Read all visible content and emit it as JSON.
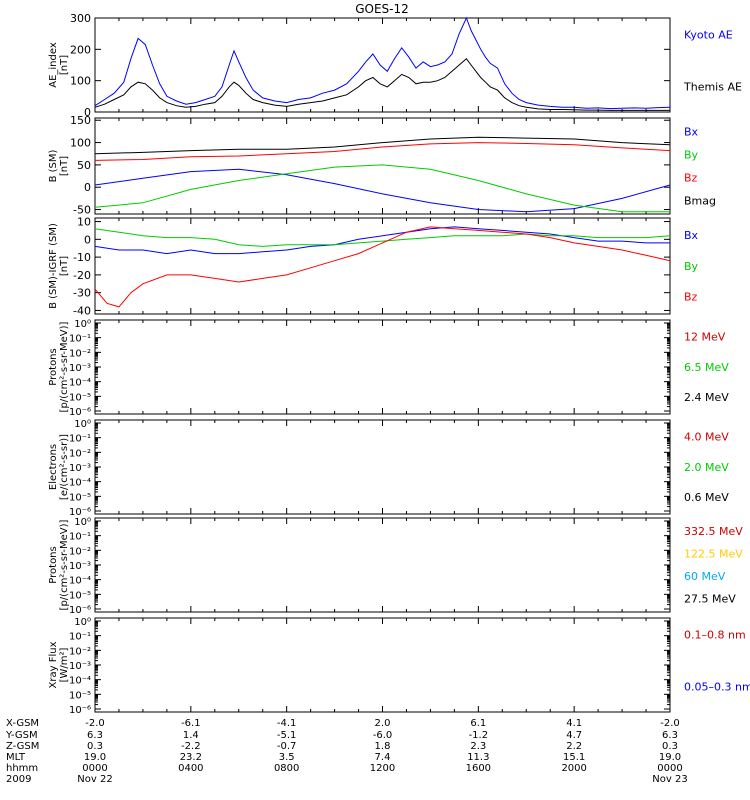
{
  "title": "GOES-12",
  "chart_data": [
    {
      "type": "line",
      "ylabel": [
        "AE_index",
        "[nT]"
      ],
      "yticks": [
        "0",
        "100",
        "200",
        "300"
      ],
      "ylim": [
        0,
        300
      ],
      "log": false,
      "xlim": [
        0,
        24
      ],
      "series": [
        {
          "name": "Kyoto AE",
          "color": "#0000ff",
          "x": [
            0,
            0.4,
            0.8,
            1.2,
            1.5,
            1.8,
            2.1,
            2.4,
            2.7,
            3,
            3.4,
            3.8,
            4.2,
            4.6,
            5,
            5.3,
            5.6,
            5.8,
            6,
            6.3,
            6.6,
            7,
            7.5,
            8,
            8.5,
            9,
            9.5,
            10,
            10.5,
            11,
            11.3,
            11.6,
            11.9,
            12.2,
            12.5,
            12.8,
            13.1,
            13.4,
            13.7,
            14,
            14.3,
            14.6,
            14.9,
            15.2,
            15.5,
            15.7,
            15.9,
            16.1,
            16.3,
            16.5,
            16.8,
            17.1,
            17.4,
            17.7,
            18,
            18.5,
            19,
            19.5,
            20,
            20.5,
            21,
            21.5,
            22,
            22.5,
            23,
            23.5,
            24
          ],
          "y": [
            20,
            40,
            60,
            95,
            170,
            235,
            215,
            150,
            90,
            50,
            35,
            25,
            30,
            40,
            50,
            80,
            150,
            195,
            160,
            110,
            70,
            45,
            35,
            30,
            40,
            45,
            60,
            70,
            90,
            130,
            160,
            185,
            150,
            130,
            170,
            205,
            175,
            140,
            160,
            145,
            150,
            160,
            185,
            250,
            300,
            260,
            230,
            200,
            175,
            155,
            140,
            90,
            60,
            40,
            30,
            22,
            18,
            15,
            15,
            12,
            13,
            11,
            12,
            13,
            12,
            14,
            15
          ]
        },
        {
          "name": "Themis AE",
          "color": "#000000",
          "x": [
            0,
            0.4,
            0.8,
            1.2,
            1.5,
            1.8,
            2.1,
            2.4,
            2.7,
            3,
            3.4,
            3.8,
            4.2,
            4.6,
            5,
            5.3,
            5.6,
            5.8,
            6,
            6.3,
            6.6,
            7,
            7.5,
            8,
            8.5,
            9,
            9.5,
            10,
            10.5,
            11,
            11.3,
            11.6,
            11.9,
            12.2,
            12.5,
            12.8,
            13.1,
            13.4,
            13.7,
            14,
            14.3,
            14.6,
            14.9,
            15.2,
            15.5,
            15.7,
            15.9,
            16.1,
            16.3,
            16.5,
            16.8,
            17.1,
            17.4,
            17.7,
            18,
            18.5,
            19,
            19.5,
            20,
            20.5,
            21,
            21.5,
            22,
            22.5,
            23,
            23.5,
            24
          ],
          "y": [
            15,
            25,
            40,
            55,
            80,
            95,
            90,
            70,
            45,
            30,
            20,
            15,
            18,
            25,
            30,
            50,
            80,
            95,
            85,
            60,
            40,
            30,
            22,
            18,
            25,
            30,
            35,
            45,
            55,
            80,
            100,
            110,
            90,
            80,
            100,
            120,
            110,
            90,
            95,
            95,
            100,
            110,
            130,
            150,
            170,
            150,
            130,
            110,
            95,
            80,
            70,
            45,
            30,
            20,
            15,
            10,
            8,
            8,
            7,
            6,
            6,
            5,
            5,
            5,
            5,
            5,
            5
          ]
        }
      ]
    },
    {
      "type": "line",
      "ylabel": [
        "B (SM)",
        "[nT]"
      ],
      "yticks": [
        "-50",
        "0",
        "50",
        "100",
        "150"
      ],
      "ylim": [
        -60,
        155
      ],
      "log": false,
      "xlim": [
        0,
        24
      ],
      "series": [
        {
          "name": "Bx",
          "color": "#0000ff",
          "x": [
            0,
            2,
            4,
            6,
            8,
            10,
            12,
            14,
            16,
            18,
            20,
            22,
            24
          ],
          "y": [
            5,
            20,
            35,
            40,
            28,
            8,
            -15,
            -35,
            -50,
            -55,
            -48,
            -25,
            5
          ]
        },
        {
          "name": "By",
          "color": "#00cc00",
          "x": [
            0,
            2,
            4,
            6,
            8,
            10,
            12,
            14,
            16,
            18,
            20,
            22,
            24
          ],
          "y": [
            -45,
            -35,
            -5,
            15,
            30,
            45,
            50,
            40,
            15,
            -15,
            -40,
            -55,
            -55
          ]
        },
        {
          "name": "Bz",
          "color": "#ff0000",
          "x": [
            0,
            2,
            4,
            6,
            8,
            10,
            12,
            14,
            16,
            18,
            20,
            22,
            24
          ],
          "y": [
            60,
            62,
            68,
            70,
            75,
            80,
            90,
            97,
            100,
            98,
            95,
            88,
            82
          ]
        },
        {
          "name": "Bmag",
          "color": "#000000",
          "x": [
            0,
            2,
            4,
            6,
            8,
            10,
            12,
            14,
            16,
            18,
            20,
            22,
            24
          ],
          "y": [
            75,
            78,
            82,
            85,
            85,
            90,
            100,
            108,
            112,
            110,
            108,
            100,
            95
          ]
        }
      ]
    },
    {
      "type": "line",
      "ylabel": [
        "B (SM)-IGRF (SM)",
        "[nT]"
      ],
      "yticks": [
        "-40",
        "-30",
        "-20",
        "-10",
        "0",
        "10"
      ],
      "ylim": [
        -42,
        12
      ],
      "log": false,
      "xlim": [
        0,
        24
      ],
      "series": [
        {
          "name": "Bx",
          "color": "#0000ff",
          "x": [
            0,
            1,
            2,
            3,
            4,
            5,
            6,
            7,
            8,
            9,
            10,
            11,
            12,
            13,
            14,
            15,
            16,
            17,
            18,
            19,
            20,
            21,
            22,
            23,
            24
          ],
          "y": [
            -4,
            -6,
            -6,
            -8,
            -6,
            -8,
            -8,
            -7,
            -6,
            -4,
            -3,
            0,
            2,
            4,
            6,
            7,
            6,
            5,
            4,
            3,
            1,
            -1,
            -1,
            -2,
            -2
          ]
        },
        {
          "name": "By",
          "color": "#00cc00",
          "x": [
            0,
            1,
            2,
            3,
            4,
            5,
            6,
            7,
            8,
            9,
            10,
            11,
            12,
            13,
            14,
            15,
            16,
            17,
            18,
            19,
            20,
            21,
            22,
            23,
            24
          ],
          "y": [
            6,
            4,
            2,
            1,
            1,
            0,
            -3,
            -4,
            -3,
            -3,
            -3,
            -2,
            -1,
            0,
            1,
            2,
            2,
            2,
            3,
            2,
            2,
            1,
            1,
            1,
            2
          ]
        },
        {
          "name": "Bz",
          "color": "#ff0000",
          "x": [
            0,
            0.5,
            1,
            1.5,
            2,
            3,
            4,
            5,
            6,
            7,
            8,
            9,
            10,
            11,
            12,
            13,
            14,
            15,
            16,
            17,
            18,
            19,
            20,
            21,
            22,
            23,
            24
          ],
          "y": [
            -28,
            -36,
            -38,
            -30,
            -25,
            -20,
            -20,
            -22,
            -24,
            -22,
            -20,
            -16,
            -12,
            -8,
            -2,
            4,
            7,
            6,
            5,
            4,
            3,
            1,
            -2,
            -4,
            -6,
            -9,
            -12
          ]
        }
      ]
    },
    {
      "type": "line",
      "ylabel": [
        "Protons",
        "[p/(cm²-s-sr-MeV)]"
      ],
      "ytick_labels": [
        "10⁰",
        "10⁻¹",
        "10⁻²",
        "10⁻³",
        "10⁻⁴",
        "10⁻⁵",
        "10⁻⁶"
      ],
      "log": true,
      "xlim": [
        0,
        24
      ],
      "series": [
        {
          "name": "12 MeV",
          "color": "#cc0000"
        },
        {
          "name": "6.5 MeV",
          "color": "#00cc00"
        },
        {
          "name": "2.4 MeV",
          "color": "#000000"
        }
      ]
    },
    {
      "type": "line",
      "ylabel": [
        "Electrons",
        "[e/(cm²-s-sr)]"
      ],
      "ytick_labels": [
        "10⁰",
        "10⁻¹",
        "10⁻²",
        "10⁻³",
        "10⁻⁴",
        "10⁻⁵",
        "10⁻⁶"
      ],
      "log": true,
      "xlim": [
        0,
        24
      ],
      "series": [
        {
          "name": "4.0 MeV",
          "color": "#cc0000"
        },
        {
          "name": "2.0 MeV",
          "color": "#00cc00"
        },
        {
          "name": "0.6 MeV",
          "color": "#000000"
        }
      ]
    },
    {
      "type": "line",
      "ylabel": [
        "Protons",
        "[p/(cm²-s-sr-MeV)]"
      ],
      "ytick_labels": [
        "10⁰",
        "10⁻¹",
        "10⁻²",
        "10⁻³",
        "10⁻⁴",
        "10⁻⁵",
        "10⁻⁶"
      ],
      "log": true,
      "xlim": [
        0,
        24
      ],
      "series": [
        {
          "name": "332.5 MeV",
          "color": "#cc0000"
        },
        {
          "name": "122.5 MeV",
          "color": "#ffcc00"
        },
        {
          "name": "60 MeV",
          "color": "#00aaee"
        },
        {
          "name": "27.5 MeV",
          "color": "#000000"
        }
      ]
    },
    {
      "type": "line",
      "ylabel": [
        "Xray  Flux",
        "[W/m²]"
      ],
      "ytick_labels": [
        "10⁰",
        "10⁻¹",
        "10⁻²",
        "10⁻³",
        "10⁻⁴",
        "10⁻⁵",
        "10⁻⁶"
      ],
      "log": true,
      "xlim": [
        0,
        24
      ],
      "series": [
        {
          "name": "0.1–0.8 nm",
          "color": "#cc0000"
        },
        {
          "name": "0.05–0.3 nm",
          "color": "#0000ff"
        }
      ]
    }
  ],
  "x_axis": {
    "row_labels": [
      "X-GSM",
      "Y-GSM",
      "Z-GSM",
      "MLT",
      "hhmm",
      "2009"
    ],
    "columns": [
      [
        "-2.0",
        "6.3",
        "0.3",
        "19.0",
        "0000",
        "Nov 22"
      ],
      [
        "-6.1",
        "1.4",
        "-2.2",
        "23.2",
        "0400",
        ""
      ],
      [
        "-4.1",
        "-5.1",
        "-0.7",
        "3.5",
        "0800",
        ""
      ],
      [
        "2.0",
        "-6.0",
        "1.8",
        "7.4",
        "1200",
        ""
      ],
      [
        "6.1",
        "-1.2",
        "2.3",
        "11.3",
        "1600",
        ""
      ],
      [
        "4.1",
        "4.7",
        "2.2",
        "15.1",
        "2000",
        ""
      ],
      [
        "-2.0",
        "6.3",
        "0.3",
        "19.0",
        "0000",
        "Nov 23"
      ]
    ]
  }
}
